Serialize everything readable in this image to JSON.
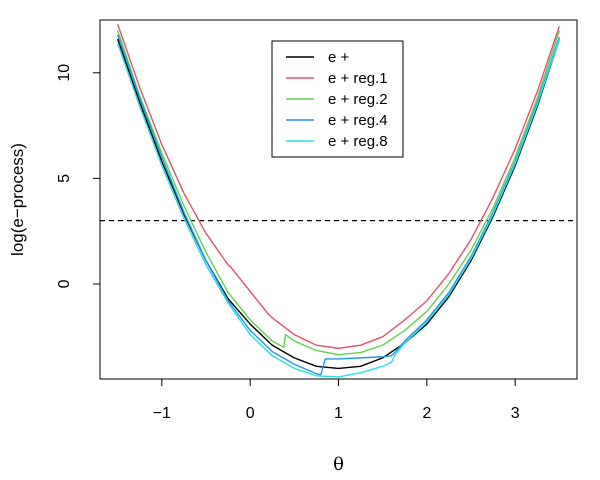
{
  "chart_data": {
    "type": "line",
    "title": "",
    "xlabel": "θ",
    "ylabel": "log(e−process)",
    "xlim": [
      -1.7,
      3.7
    ],
    "ylim": [
      -4.5,
      12.5
    ],
    "x_ticks": [
      -1,
      0,
      1,
      2,
      3
    ],
    "x_tick_labels": [
      "−1",
      "0",
      "1",
      "2",
      "3"
    ],
    "y_ticks": [
      0,
      5,
      10
    ],
    "y_tick_labels": [
      "0",
      "5",
      "10"
    ],
    "grid": false,
    "legend_position": "top-center",
    "reference_line": {
      "type": "horizontal",
      "y": 3.0,
      "style": "dashed",
      "color": "#000000"
    },
    "series": [
      {
        "name": "e +",
        "color": "#000000",
        "x": [
          -1.5,
          -1.25,
          -1.0,
          -0.75,
          -0.5,
          -0.25,
          0.0,
          0.25,
          0.5,
          0.75,
          1.0,
          1.25,
          1.5,
          1.75,
          2.0,
          2.25,
          2.5,
          2.75,
          3.0,
          3.25,
          3.5
        ],
        "y": [
          11.6,
          8.6,
          5.8,
          3.3,
          1.1,
          -0.7,
          -1.9,
          -2.9,
          -3.5,
          -3.9,
          -4.0,
          -3.9,
          -3.5,
          -2.8,
          -1.9,
          -0.6,
          1.1,
          3.2,
          5.6,
          8.4,
          11.6
        ]
      },
      {
        "name": "e + reg.1",
        "color": "#DF536B",
        "x": [
          -1.5,
          -1.25,
          -1.0,
          -0.75,
          -0.5,
          -0.25,
          -0.22,
          0.2,
          0.25,
          0.5,
          0.75,
          1.0,
          1.25,
          1.5,
          1.75,
          2.0,
          2.25,
          2.5,
          2.75,
          3.0,
          3.25,
          3.5
        ],
        "y": [
          12.3,
          9.3,
          6.6,
          4.3,
          2.4,
          0.9,
          0.8,
          -1.4,
          -1.6,
          -2.4,
          -2.9,
          -3.05,
          -2.9,
          -2.5,
          -1.7,
          -0.8,
          0.5,
          2.1,
          4.1,
          6.4,
          9.1,
          12.2
        ]
      },
      {
        "name": "e + reg.2",
        "color": "#61D04F",
        "x": [
          -1.5,
          -1.25,
          -1.0,
          -0.75,
          -0.5,
          -0.25,
          0.0,
          0.25,
          0.38,
          0.4,
          0.5,
          0.75,
          1.0,
          1.25,
          1.5,
          1.75,
          2.0,
          2.25,
          2.5,
          2.75,
          3.0,
          3.25,
          3.5
        ],
        "y": [
          12.0,
          8.9,
          6.2,
          3.7,
          1.5,
          -0.4,
          -1.7,
          -2.7,
          -3.0,
          -2.4,
          -2.7,
          -3.15,
          -3.35,
          -3.25,
          -2.9,
          -2.2,
          -1.3,
          0.0,
          1.6,
          3.6,
          6.0,
          8.8,
          12.0
        ]
      },
      {
        "name": "e + reg.4",
        "color": "#2297E6",
        "x": [
          -1.5,
          -1.25,
          -1.0,
          -0.75,
          -0.5,
          -0.25,
          0.0,
          0.25,
          0.5,
          0.75,
          0.8,
          0.85,
          1.0,
          1.25,
          1.5,
          1.6,
          1.65,
          1.75,
          2.0,
          2.25,
          2.5,
          2.75,
          3.0,
          3.25,
          3.5
        ],
        "y": [
          11.8,
          8.8,
          6.0,
          3.4,
          1.1,
          -0.8,
          -2.2,
          -3.2,
          -3.8,
          -4.25,
          -4.3,
          -3.55,
          -3.55,
          -3.5,
          -3.45,
          -3.4,
          -3.2,
          -2.7,
          -1.7,
          -0.4,
          1.3,
          3.4,
          5.8,
          8.6,
          11.7
        ]
      },
      {
        "name": "e + reg.8",
        "color": "#28E2E5",
        "x": [
          -1.5,
          -1.25,
          -1.0,
          -0.75,
          -0.5,
          -0.25,
          0.0,
          0.25,
          0.5,
          0.75,
          1.0,
          1.25,
          1.5,
          1.6,
          1.65,
          1.75,
          2.0,
          2.25,
          2.5,
          2.75,
          3.0,
          3.25,
          3.5
        ],
        "y": [
          11.4,
          8.4,
          5.6,
          3.1,
          0.9,
          -0.9,
          -2.4,
          -3.4,
          -4.0,
          -4.35,
          -4.4,
          -4.2,
          -3.9,
          -3.7,
          -3.3,
          -2.8,
          -1.8,
          -0.5,
          1.2,
          3.3,
          5.7,
          8.5,
          11.6
        ]
      }
    ]
  }
}
